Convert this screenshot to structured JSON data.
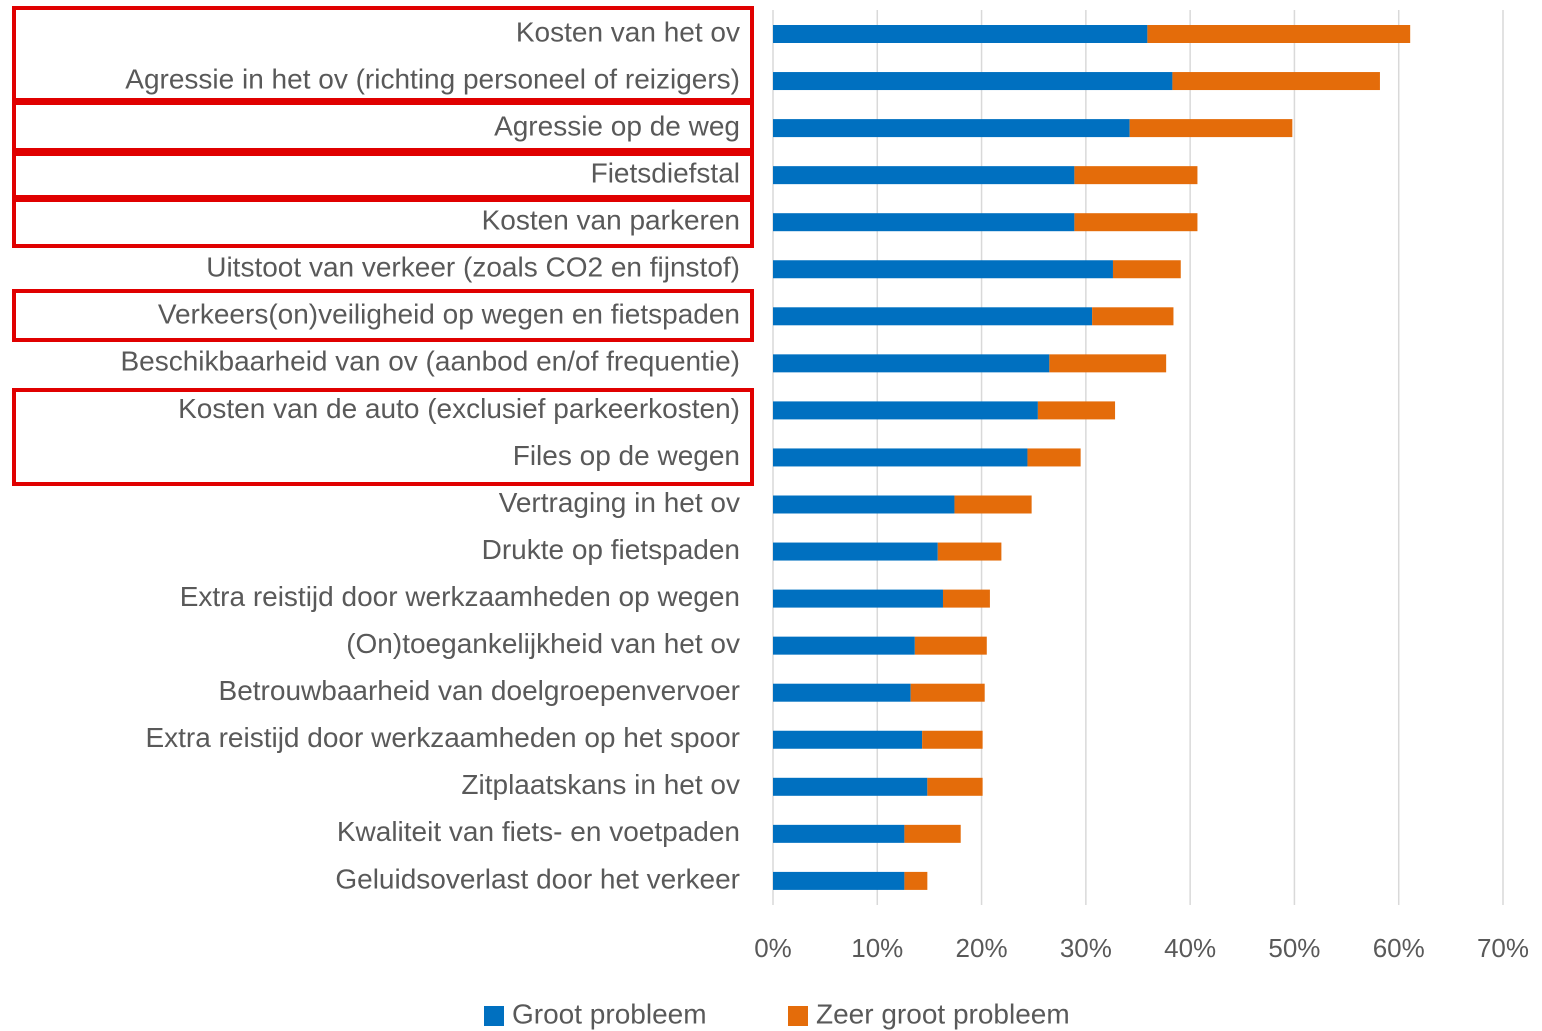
{
  "chart_data": {
    "type": "stacked-barh",
    "categories": [
      "Kosten van het ov",
      "Agressie in het ov (richting personeel of reizigers)",
      "Agressie op de weg",
      "Fietsdiefstal",
      "Kosten van parkeren",
      "Uitstoot van verkeer (zoals CO2 en fijnstof)",
      "Verkeers(on)veiligheid op wegen en fietspaden",
      "Beschikbaarheid van ov (aanbod en/of frequentie)",
      "Kosten van de auto (exclusief parkeerkosten)",
      "Files op de wegen",
      "Vertraging in het ov",
      "Drukte op fietspaden",
      "Extra reistijd door werkzaamheden op wegen",
      "(On)toegankelijkheid van het ov",
      "Betrouwbaarheid van doelgroepenvervoer",
      "Extra reistijd door werkzaamheden op het spoor",
      "Zitplaatskans in het ov",
      "Kwaliteit van fiets- en voetpaden",
      "Geluidsoverlast door het verkeer"
    ],
    "series": [
      {
        "name": "Groot probleem",
        "color": "#0070c0",
        "values": [
          35.9,
          38.3,
          34.2,
          28.9,
          28.9,
          32.6,
          30.6,
          26.5,
          25.4,
          24.4,
          17.4,
          15.8,
          16.3,
          13.6,
          13.2,
          14.3,
          14.8,
          12.6,
          12.6
        ]
      },
      {
        "name": "Zeer groot probleem",
        "color": "#e46c0a",
        "values": [
          25.2,
          19.9,
          15.6,
          11.8,
          11.8,
          6.5,
          7.8,
          11.2,
          7.4,
          5.1,
          7.4,
          6.1,
          4.5,
          6.9,
          7.1,
          5.8,
          5.3,
          5.4,
          2.2
        ]
      }
    ],
    "xlim": [
      0,
      70
    ],
    "xticks": [
      {
        "value": 0,
        "label": "0%"
      },
      {
        "value": 10,
        "label": "10%"
      },
      {
        "value": 20,
        "label": "20%"
      },
      {
        "value": 30,
        "label": "30%"
      },
      {
        "value": 40,
        "label": "40%"
      },
      {
        "value": 50,
        "label": "50%"
      },
      {
        "value": 60,
        "label": "60%"
      },
      {
        "value": 70,
        "label": "70%"
      }
    ],
    "grid": true,
    "legend": "bottom"
  }
}
